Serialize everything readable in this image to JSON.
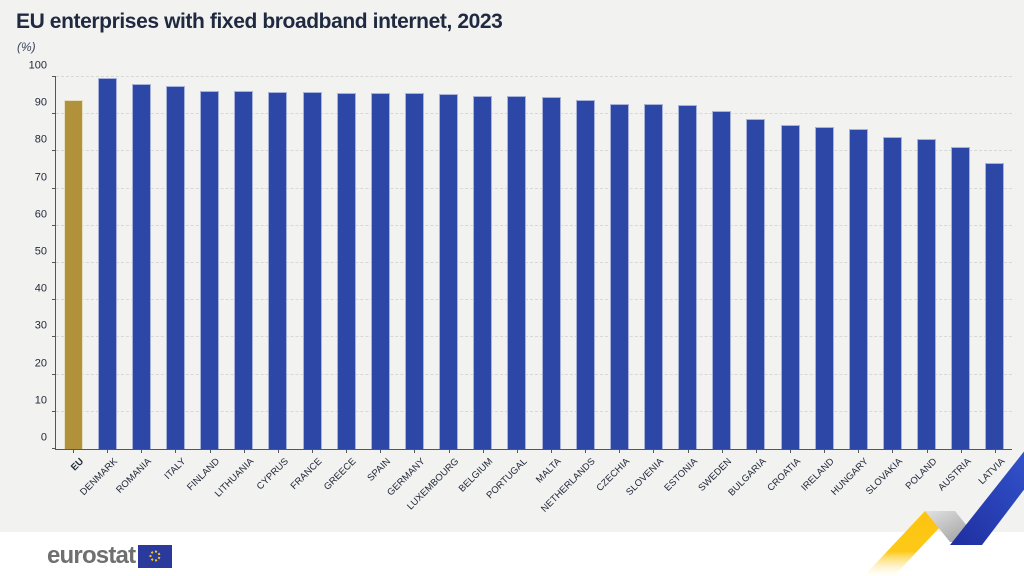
{
  "header": {
    "title": "EU enterprises with fixed broadband internet, 2023",
    "subtitle": "(%)"
  },
  "chart_data": {
    "type": "bar",
    "title": "EU enterprises with fixed broadband internet, 2023",
    "ylabel": "(%)",
    "ylim": [
      0,
      100
    ],
    "yticks": [
      0,
      10,
      20,
      30,
      40,
      50,
      60,
      70,
      80,
      90,
      100
    ],
    "grid": "horizontal-dashed",
    "legend_position": "none",
    "highlight_category": "EU",
    "categories": [
      "EU",
      "DENMARK",
      "ROMANIA",
      "ITALY",
      "FINLAND",
      "LITHUANIA",
      "CYPRUS",
      "FRANCE",
      "GREECE",
      "SPAIN",
      "GERMANY",
      "LUXEMBOURG",
      "BELGIUM",
      "PORTUGAL",
      "MALTA",
      "NETHERLANDS",
      "CZECHIA",
      "SLOVENIA",
      "ESTONIA",
      "SWEDEN",
      "BULGARIA",
      "CROATIA",
      "IRELAND",
      "HUNGARY",
      "SLOVAKIA",
      "POLAND",
      "AUSTRIA",
      "LATVIA"
    ],
    "values": [
      93.7,
      99.7,
      98.1,
      97.5,
      96.3,
      96.2,
      96.1,
      96.0,
      95.8,
      95.7,
      95.6,
      95.4,
      95.0,
      94.8,
      94.5,
      93.8,
      92.8,
      92.7,
      92.6,
      90.8,
      88.8,
      87.2,
      86.6,
      86.1,
      83.9,
      83.3,
      81.2,
      77.0
    ],
    "colors": {
      "eu_bar": "#b1923a",
      "member_bar": "#2c47a5",
      "bar_edge": "#a9b2d8",
      "background": "#f2f2f0",
      "title_text": "#1f2940",
      "gridline": "#d8d8d6",
      "axis_line": "#55565a",
      "ribbon_yellow": "#fdc30f",
      "ribbon_blue": "#2743c6",
      "ribbon_gray": "#ababab"
    }
  },
  "footer": {
    "brand": "eurostat"
  }
}
